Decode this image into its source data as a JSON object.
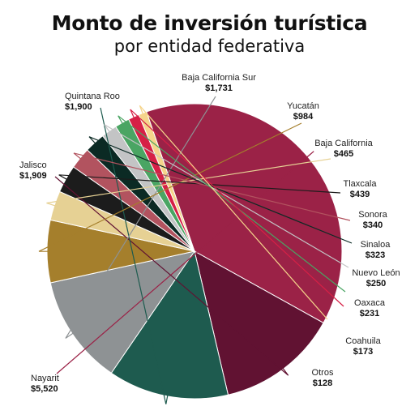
{
  "chart_data": {
    "type": "pie",
    "title": "Monto de inversión turística",
    "subtitle": "por entidad federativa",
    "slices": [
      {
        "label": "Nayarit",
        "value_label": "$5,520",
        "value": 5520,
        "color": "#9b2247"
      },
      {
        "label": "Jalisco",
        "value_label": "$1,909",
        "value": 1909,
        "color": "#611232"
      },
      {
        "label": "Quintana Roo",
        "value_label": "$1,900",
        "value": 1900,
        "color": "#1e5b4f"
      },
      {
        "label": "Baja California Sur",
        "value_label": "$1,731",
        "value": 1731,
        "color": "#8e9294"
      },
      {
        "label": "Yucatán",
        "value_label": "$984",
        "value": 984,
        "color": "#a57f2c"
      },
      {
        "label": "Baja California",
        "value_label": "$465",
        "value": 465,
        "color": "#e6d194"
      },
      {
        "label": "Tlaxcala",
        "value_label": "$439",
        "value": 439,
        "color": "#1c1c1c"
      },
      {
        "label": "Sonora",
        "value_label": "$340",
        "value": 340,
        "color": "#b2535f"
      },
      {
        "label": "Sinaloa",
        "value_label": "$323",
        "value": 323,
        "color": "#0b2a24"
      },
      {
        "label": "Nuevo León",
        "value_label": "$250",
        "value": 250,
        "color": "#c3c4c5"
      },
      {
        "label": "Oaxaca",
        "value_label": "$231",
        "value": 231,
        "color": "#4aa563"
      },
      {
        "label": "Coahuila",
        "value_label": "$173",
        "value": 173,
        "color": "#d62046"
      },
      {
        "label": "Otros",
        "value_label": "$128",
        "value": 128,
        "color": "#f5d48b"
      }
    ]
  }
}
